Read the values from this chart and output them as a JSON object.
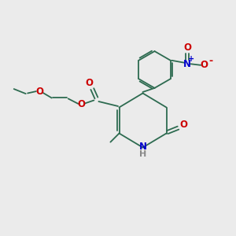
{
  "background_color": "#ebebeb",
  "bond_color": "#2d6b50",
  "atom_colors": {
    "O": "#cc0000",
    "N": "#0000cc",
    "H": "#888888",
    "C": "#2d6b50"
  },
  "figsize": [
    3.0,
    3.0
  ],
  "dpi": 100
}
